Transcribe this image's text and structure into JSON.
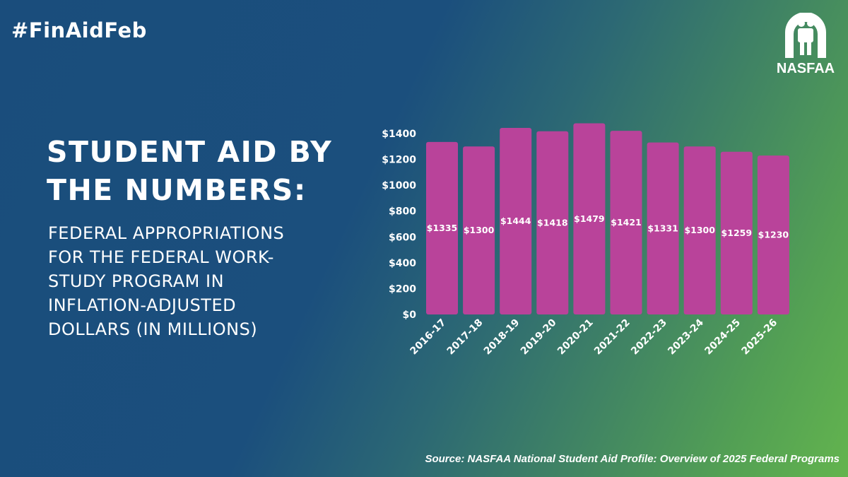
{
  "hashtag": "#FinAidFeb",
  "logo": {
    "text": "NASFAA"
  },
  "title": [
    "STUDENT AID BY",
    "THE NUMBERS:"
  ],
  "subtitle": [
    "FEDERAL APPROPRIATIONS",
    "FOR THE FEDERAL WORK-",
    "STUDY PROGRAM IN",
    "INFLATION-ADJUSTED",
    "DOLLARS (IN MILLIONS)"
  ],
  "source": "Source: NASFAA National Student Aid Profile: Overview of 2025 Federal Programs",
  "colors": {
    "bar": "#b9439a",
    "bg_start": "#1b4f7d",
    "bg_end": "#63b44e"
  },
  "chart_data": {
    "type": "bar",
    "title": "Federal appropriations for the Federal Work-Study program in inflation-adjusted dollars (in millions)",
    "categories": [
      "2016-17",
      "2017-18",
      "2018-19",
      "2019-20",
      "2020-21",
      "2021-22",
      "2022-23",
      "2023-24",
      "2024-25",
      "2025-26"
    ],
    "values": [
      1335,
      1300,
      1444,
      1418,
      1479,
      1421,
      1331,
      1300,
      1259,
      1230
    ],
    "data_labels": [
      "$1335",
      "$1300",
      "$1444",
      "$1418",
      "$1479",
      "$1421",
      "$1331",
      "$1300",
      "$1259",
      "$1230"
    ],
    "yticks": [
      0,
      200,
      400,
      600,
      800,
      1000,
      1200,
      1400
    ],
    "ytick_labels": [
      "$0",
      "$200",
      "$400",
      "$600",
      "$800",
      "$1000",
      "$1200",
      "$1400"
    ],
    "ylim": [
      0,
      1400
    ],
    "xlabel": "",
    "ylabel": "",
    "grid": false,
    "legend": "none"
  }
}
